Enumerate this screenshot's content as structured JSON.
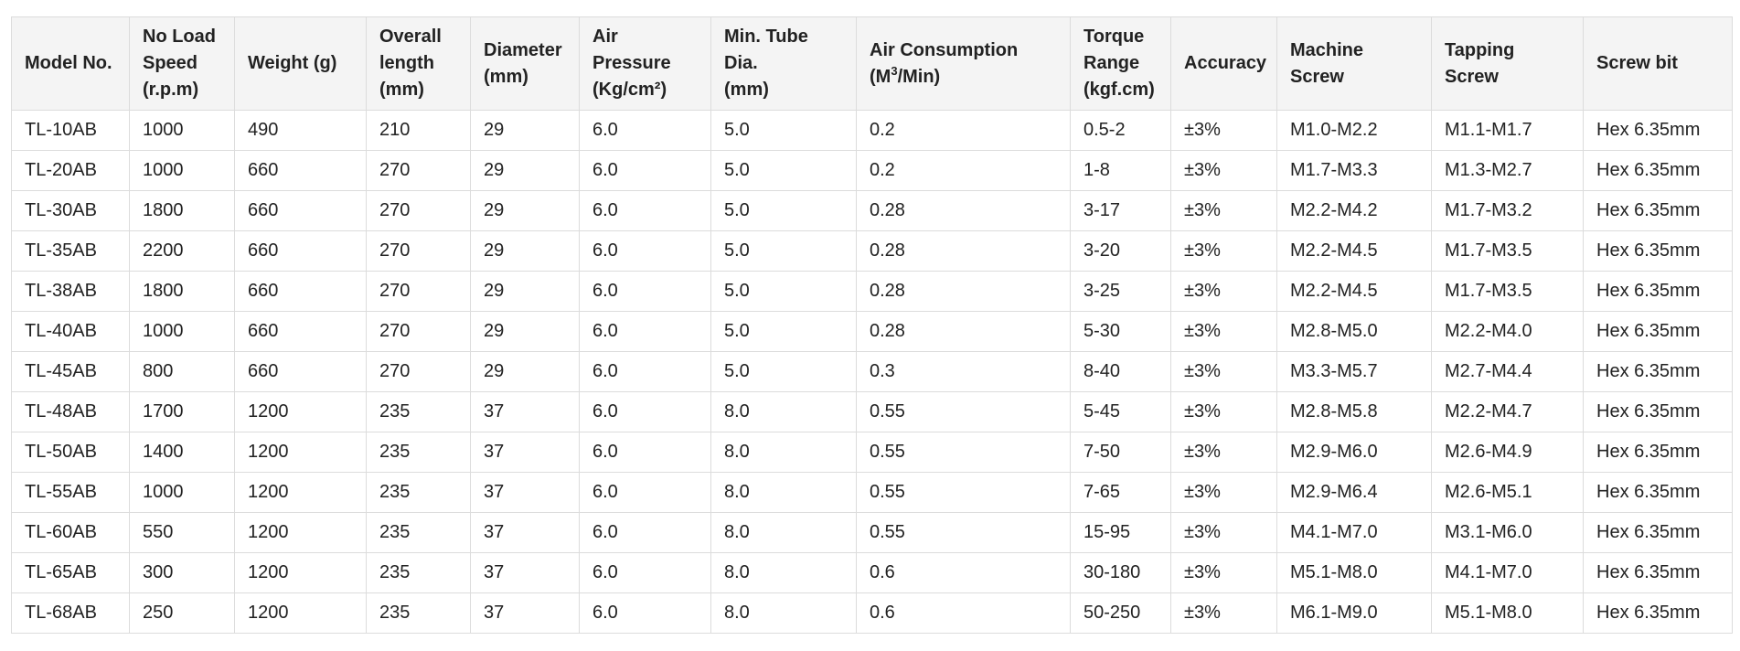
{
  "table": {
    "headers": [
      "Model No.",
      "No Load\nSpeed\n(r.p.m)",
      "Weight (g)",
      "Overall\nlength\n(mm)",
      "Diameter\n(mm)",
      "Air\nPressure\n(Kg/cm²)",
      "Min. Tube\nDia.\n(mm)",
      "Air Consumption",
      "Torque\nRange\n(kgf.cm)",
      "Accuracy",
      "Machine\nScrew",
      "Tapping\nScrew",
      "Screw bit"
    ],
    "air_consumption_unit": {
      "pre": "(M",
      "sup": "3",
      "post": "/Min)"
    },
    "rows": [
      [
        "TL-10AB",
        "1000",
        "490",
        "210",
        "29",
        "6.0",
        "5.0",
        "0.2",
        "0.5-2",
        "±3%",
        "M1.0-M2.2",
        "M1.1-M1.7",
        "Hex 6.35mm"
      ],
      [
        "TL-20AB",
        "1000",
        "660",
        "270",
        "29",
        "6.0",
        "5.0",
        "0.2",
        "1-8",
        "±3%",
        "M1.7-M3.3",
        "M1.3-M2.7",
        "Hex 6.35mm"
      ],
      [
        "TL-30AB",
        "1800",
        "660",
        "270",
        "29",
        "6.0",
        "5.0",
        "0.28",
        "3-17",
        "±3%",
        "M2.2-M4.2",
        "M1.7-M3.2",
        "Hex 6.35mm"
      ],
      [
        "TL-35AB",
        "2200",
        "660",
        "270",
        "29",
        "6.0",
        "5.0",
        "0.28",
        "3-20",
        "±3%",
        "M2.2-M4.5",
        "M1.7-M3.5",
        "Hex 6.35mm"
      ],
      [
        "TL-38AB",
        "1800",
        "660",
        "270",
        "29",
        "6.0",
        "5.0",
        "0.28",
        "3-25",
        "±3%",
        "M2.2-M4.5",
        "M1.7-M3.5",
        "Hex 6.35mm"
      ],
      [
        "TL-40AB",
        "1000",
        "660",
        "270",
        "29",
        "6.0",
        "5.0",
        "0.28",
        "5-30",
        "±3%",
        "M2.8-M5.0",
        "M2.2-M4.0",
        "Hex 6.35mm"
      ],
      [
        "TL-45AB",
        "800",
        "660",
        "270",
        "29",
        "6.0",
        "5.0",
        "0.3",
        "8-40",
        "±3%",
        "M3.3-M5.7",
        "M2.7-M4.4",
        "Hex 6.35mm"
      ],
      [
        "TL-48AB",
        "1700",
        "1200",
        "235",
        "37",
        "6.0",
        "8.0",
        "0.55",
        "5-45",
        "±3%",
        "M2.8-M5.8",
        "M2.2-M4.7",
        "Hex 6.35mm"
      ],
      [
        "TL-50AB",
        "1400",
        "1200",
        "235",
        "37",
        "6.0",
        "8.0",
        "0.55",
        "7-50",
        "±3%",
        "M2.9-M6.0",
        "M2.6-M4.9",
        "Hex 6.35mm"
      ],
      [
        "TL-55AB",
        "1000",
        "1200",
        "235",
        "37",
        "6.0",
        "8.0",
        "0.55",
        "7-65",
        "±3%",
        "M2.9-M6.4",
        "M2.6-M5.1",
        "Hex 6.35mm"
      ],
      [
        "TL-60AB",
        "550",
        "1200",
        "235",
        "37",
        "6.0",
        "8.0",
        "0.55",
        "15-95",
        "±3%",
        "M4.1-M7.0",
        "M3.1-M6.0",
        "Hex 6.35mm"
      ],
      [
        "TL-65AB",
        "300",
        "1200",
        "235",
        "37",
        "6.0",
        "8.0",
        "0.6",
        "30-180",
        "±3%",
        "M5.1-M8.0",
        "M4.1-M7.0",
        "Hex 6.35mm"
      ],
      [
        "TL-68AB",
        "250",
        "1200",
        "235",
        "37",
        "6.0",
        "8.0",
        "0.6",
        "50-250",
        "±3%",
        "M6.1-M9.0",
        "M5.1-M8.0",
        "Hex 6.35mm"
      ]
    ]
  }
}
